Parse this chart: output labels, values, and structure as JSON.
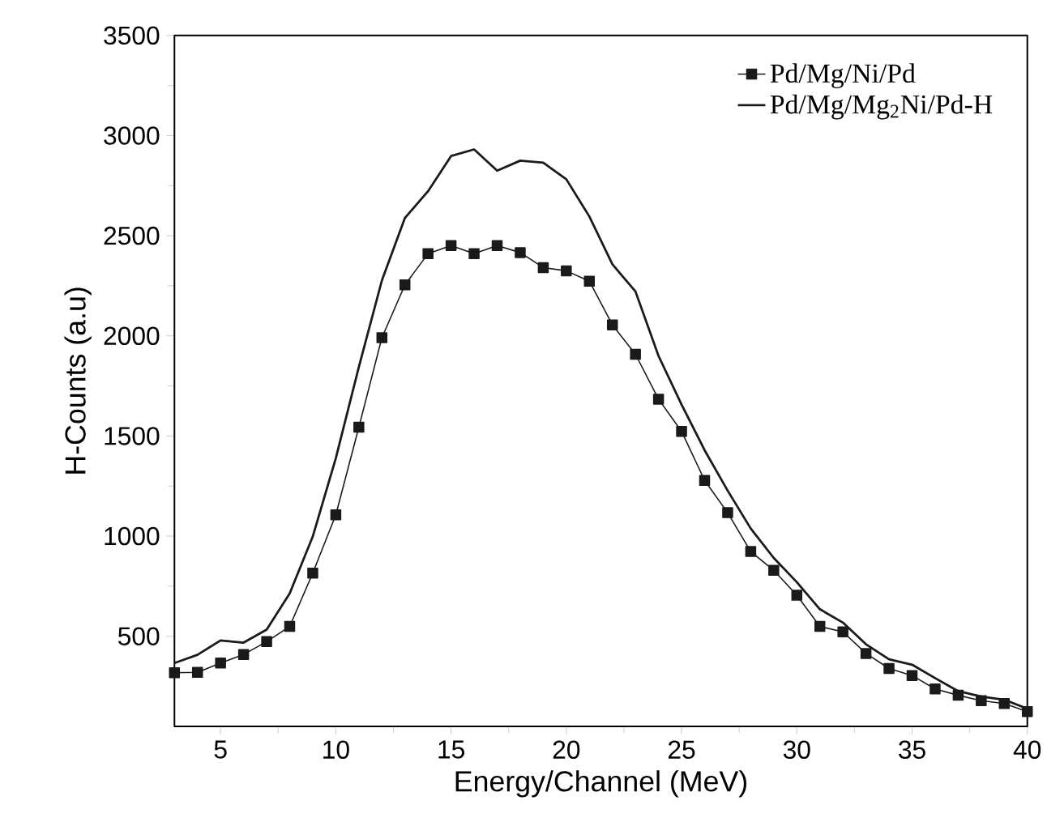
{
  "chart_data": {
    "type": "line",
    "xlabel": "Energy/Channel (MeV)",
    "ylabel": "H-Counts (a.u)",
    "x": [
      3,
      4,
      5,
      6,
      7,
      8,
      9,
      10,
      11,
      12,
      13,
      14,
      15,
      16,
      17,
      18,
      19,
      20,
      21,
      22,
      23,
      24,
      25,
      26,
      27,
      28,
      29,
      30,
      31,
      32,
      33,
      34,
      35,
      36,
      37,
      38,
      39,
      40
    ],
    "series": [
      {
        "name": "Pd/Mg/Ni/Pd",
        "color": "#1a1a1a",
        "marker": "square",
        "values": [
          318,
          320,
          366,
          409,
          473,
          549,
          815,
          1106,
          1544,
          1991,
          2255,
          2410,
          2451,
          2410,
          2451,
          2416,
          2341,
          2325,
          2273,
          2055,
          1908,
          1684,
          1523,
          1278,
          1117,
          923,
          829,
          705,
          549,
          522,
          414,
          339,
          304,
          237,
          205,
          178,
          164,
          124
        ]
      },
      {
        "name": "Pd/Mg/Mg$_{2}$Ni/Pd-H",
        "color": "#1a1a1a",
        "marker": "none",
        "values": [
          366,
          407,
          479,
          468,
          533,
          714,
          998,
          1389,
          1845,
          2277,
          2589,
          2722,
          2898,
          2931,
          2825,
          2875,
          2865,
          2782,
          2596,
          2357,
          2222,
          1900,
          1657,
          1429,
          1227,
          1038,
          891,
          770,
          635,
          568,
          460,
          385,
          358,
          291,
          226,
          199,
          183,
          138
        ]
      }
    ],
    "xlim": [
      3,
      40
    ],
    "ylim": [
      50,
      3500
    ],
    "xticks": [
      5,
      10,
      15,
      20,
      25,
      30,
      35,
      40
    ],
    "yticks": [
      500,
      1000,
      1500,
      2000,
      2500,
      3000,
      3500
    ],
    "grid": false,
    "legend": "top right"
  }
}
